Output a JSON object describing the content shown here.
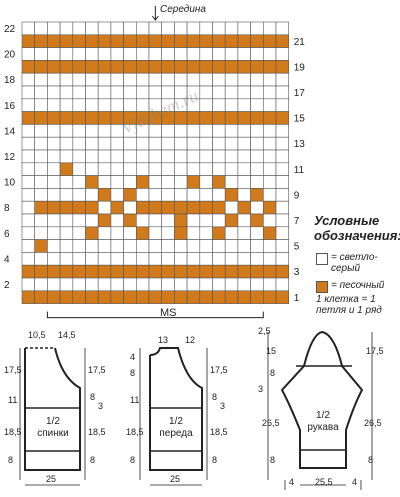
{
  "chart": {
    "top_label": "Середина",
    "bottom_label": "MS",
    "row_labels_left": [
      "22",
      "20",
      "18",
      "16",
      "14",
      "12",
      "10",
      "8",
      "6",
      "4",
      "2"
    ],
    "row_labels_right": [
      "21",
      "19",
      "17",
      "15",
      "13",
      "11",
      "9",
      "7",
      "5",
      "3",
      "1"
    ],
    "cols": 21,
    "rows": 22,
    "pattern_rows": [
      "000000000000000000000",
      "111111111111111111111",
      "000000000000000000000",
      "111111111111111111111",
      "000000000000000000000",
      "000000000000000000000",
      "000000000000000000000",
      "111111111111111111111",
      "000000000000000000000",
      "000000000000000000000",
      "000000000000000000000",
      "000100000000000000000",
      "000001000100010100000",
      "000000101000000010100",
      "011111010111111101010",
      "000000101000100010100",
      "000001000100100100010",
      "010000000000000000000",
      "000000000000000000000",
      "111111111111111111111",
      "000000000000000000000",
      "111111111111111111111"
    ],
    "colors": {
      "sand": "#d07a1c",
      "light": "#ffffff",
      "grid": "#555555"
    }
  },
  "watermark": "Vjazhem.ru",
  "legend": {
    "title": "Условные обозначения:",
    "items": [
      {
        "label": "= светло-серый",
        "color": "#ffffff"
      },
      {
        "label": "= песочный",
        "color": "#d07a1c"
      }
    ],
    "note": "1 клетка = 1 петля и 1 ряд"
  },
  "schematics": {
    "back": {
      "title": "1/2 спинки",
      "top_dims": [
        "10,5",
        "14,5"
      ],
      "left_dims": [
        "17,5",
        "11",
        "18,5",
        "8"
      ],
      "right_dims": [
        "17,5",
        "8",
        "18,5",
        "8"
      ],
      "side_num": "3",
      "bottom_dim": "25"
    },
    "front": {
      "title": "1/2 переда",
      "top_dims": [
        "13",
        "12"
      ],
      "left_dims": [
        "4",
        "8",
        "11",
        "18,5",
        "8"
      ],
      "right_dims": [
        "17,5",
        "8",
        "18,5",
        "8"
      ],
      "side_num": "3",
      "bottom_dim": "25"
    },
    "sleeve": {
      "title": "1/2 рукава",
      "top_dims": [
        "2,5"
      ],
      "left_dims": [
        "15",
        "8",
        "3",
        "26,5",
        "8"
      ],
      "right_dims": [
        "17,5",
        "26,5",
        "8"
      ],
      "bottom_dims": [
        "4",
        "25,5",
        "4"
      ]
    }
  }
}
